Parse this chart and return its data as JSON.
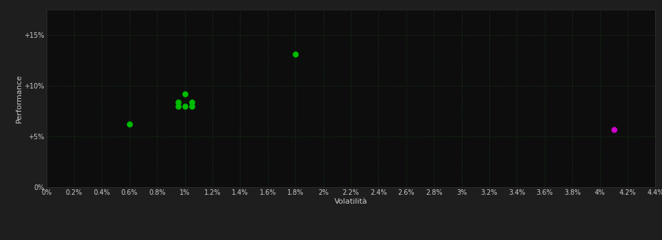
{
  "background_color": "#1e1e1e",
  "plot_bg_color": "#0d0d0d",
  "xlabel": "Volatilità",
  "ylabel": "Performance",
  "xlim": [
    0,
    0.044
  ],
  "ylim": [
    0,
    0.175
  ],
  "xtick_labels": [
    "0%",
    "0.2%",
    "0.4%",
    "0.6%",
    "0.8%",
    "1%",
    "1.2%",
    "1.4%",
    "1.6%",
    "1.8%",
    "2%",
    "2.2%",
    "2.4%",
    "2.6%",
    "2.8%",
    "3%",
    "3.2%",
    "3.4%",
    "3.6%",
    "3.8%",
    "4%",
    "4.2%",
    "4.4%"
  ],
  "xtick_values": [
    0,
    0.002,
    0.004,
    0.006,
    0.008,
    0.01,
    0.012,
    0.014,
    0.016,
    0.018,
    0.02,
    0.022,
    0.024,
    0.026,
    0.028,
    0.03,
    0.032,
    0.034,
    0.036,
    0.038,
    0.04,
    0.042,
    0.044
  ],
  "ytick_labels": [
    "0%",
    "+5%",
    "+10%",
    "+15%"
  ],
  "ytick_values": [
    0,
    0.05,
    0.1,
    0.15
  ],
  "green_points": [
    [
      0.006,
      0.062
    ],
    [
      0.01,
      0.092
    ],
    [
      0.0095,
      0.084
    ],
    [
      0.0095,
      0.08
    ],
    [
      0.01,
      0.08
    ],
    [
      0.0105,
      0.084
    ],
    [
      0.0105,
      0.08
    ],
    [
      0.018,
      0.131
    ]
  ],
  "magenta_points": [
    [
      0.041,
      0.057
    ]
  ],
  "green_color": "#00bb00",
  "magenta_color": "#cc00cc",
  "marker_size": 40,
  "font_color": "#cccccc",
  "font_size_labels": 8,
  "font_size_ticks": 7,
  "grid_color": "#1a3a1a",
  "spine_color": "#333333"
}
